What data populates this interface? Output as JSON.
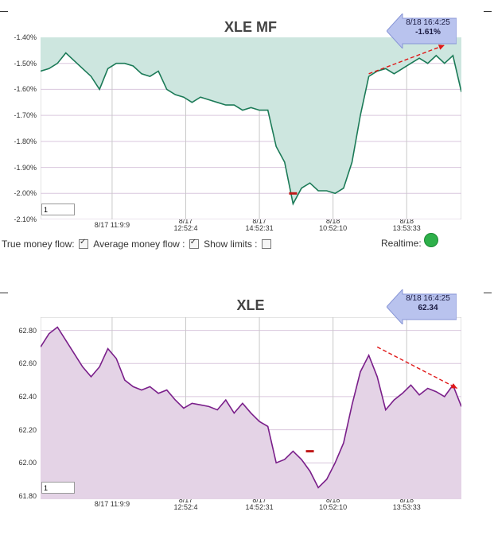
{
  "charts": [
    {
      "title": "XLE MF",
      "yticks": [
        "-1.40%",
        "-1.50%",
        "-1.60%",
        "-1.70%",
        "-1.80%",
        "-1.90%",
        "-2.00%",
        "-2.10%"
      ],
      "xticks": [
        [
          "8/17 11:9:9"
        ],
        [
          "8/17",
          "12:52:4"
        ],
        [
          "8/17",
          "14:52:31"
        ],
        [
          "8/18",
          "10:52:10"
        ],
        [
          "8/18",
          "13:53:33"
        ]
      ],
      "range_value": "1",
      "tooltip_time": "8/18 16:4:25",
      "tooltip_value": "-1.61%",
      "line_color": "#1b7a57",
      "fill_color": "#cde6df"
    },
    {
      "title": "XLE",
      "yticks": [
        "62.80",
        "62.60",
        "62.40",
        "62.20",
        "62.00",
        "61.80"
      ],
      "xticks": [
        [
          "8/17 11:9:9"
        ],
        [
          "8/17",
          "12:52:4"
        ],
        [
          "8/17",
          "14:52:31"
        ],
        [
          "8/18",
          "10:52:10"
        ],
        [
          "8/18",
          "13:53:33"
        ]
      ],
      "range_value": "1",
      "tooltip_time": "8/18 16:4:25",
      "tooltip_value": "62.34",
      "line_color": "#7a1f8a",
      "fill_color": "#e4d3e6"
    }
  ],
  "controls": {
    "true_money_flow_label": "True money flow:",
    "average_money_flow_label": "Average money flow :",
    "show_limits_label": "Show limits :",
    "average_money_flow_checked": true,
    "show_limits_checked": false,
    "realtime_label": "Realtime:",
    "realtime_color": "#2eb04a"
  },
  "chart_data": [
    {
      "type": "area",
      "title": "XLE MF",
      "ylim": [
        -2.1,
        -1.4
      ],
      "x": [
        0,
        0.02,
        0.04,
        0.06,
        0.08,
        0.1,
        0.12,
        0.14,
        0.16,
        0.18,
        0.2,
        0.22,
        0.24,
        0.26,
        0.28,
        0.3,
        0.32,
        0.34,
        0.36,
        0.38,
        0.4,
        0.42,
        0.44,
        0.46,
        0.48,
        0.5,
        0.52,
        0.54,
        0.56,
        0.58,
        0.6,
        0.62,
        0.64,
        0.66,
        0.68,
        0.7,
        0.72,
        0.74,
        0.76,
        0.78,
        0.8,
        0.82,
        0.84,
        0.86,
        0.88,
        0.9,
        0.92,
        0.94,
        0.96,
        0.98,
        1.0
      ],
      "values": [
        -1.53,
        -1.52,
        -1.5,
        -1.46,
        -1.49,
        -1.52,
        -1.55,
        -1.6,
        -1.52,
        -1.5,
        -1.5,
        -1.51,
        -1.54,
        -1.55,
        -1.53,
        -1.6,
        -1.62,
        -1.63,
        -1.65,
        -1.63,
        -1.64,
        -1.65,
        -1.66,
        -1.66,
        -1.68,
        -1.67,
        -1.68,
        -1.68,
        -1.82,
        -1.88,
        -2.04,
        -1.98,
        -1.96,
        -1.99,
        -1.99,
        -2.0,
        -1.98,
        -1.88,
        -1.7,
        -1.55,
        -1.53,
        -1.52,
        -1.54,
        -1.52,
        -1.5,
        -1.48,
        -1.5,
        -1.47,
        -1.5,
        -1.47,
        -1.61
      ],
      "trendline": [
        [
          0.78,
          -1.54
        ],
        [
          0.96,
          -1.43
        ]
      ],
      "marker": [
        0.6,
        -2.0
      ]
    },
    {
      "type": "area",
      "title": "XLE",
      "ylim": [
        61.78,
        62.88
      ],
      "x": [
        0,
        0.02,
        0.04,
        0.06,
        0.08,
        0.1,
        0.12,
        0.14,
        0.16,
        0.18,
        0.2,
        0.22,
        0.24,
        0.26,
        0.28,
        0.3,
        0.32,
        0.34,
        0.36,
        0.38,
        0.4,
        0.42,
        0.44,
        0.46,
        0.48,
        0.5,
        0.52,
        0.54,
        0.56,
        0.58,
        0.6,
        0.62,
        0.64,
        0.66,
        0.68,
        0.7,
        0.72,
        0.74,
        0.76,
        0.78,
        0.8,
        0.82,
        0.84,
        0.86,
        0.88,
        0.9,
        0.92,
        0.94,
        0.96,
        0.98,
        1.0
      ],
      "values": [
        62.7,
        62.78,
        62.82,
        62.74,
        62.66,
        62.58,
        62.52,
        62.58,
        62.69,
        62.63,
        62.5,
        62.46,
        62.44,
        62.46,
        62.42,
        62.44,
        62.38,
        62.33,
        62.36,
        62.35,
        62.34,
        62.32,
        62.38,
        62.3,
        62.36,
        62.3,
        62.25,
        62.22,
        62.0,
        62.02,
        62.07,
        62.02,
        61.95,
        61.85,
        61.9,
        62.0,
        62.12,
        62.35,
        62.55,
        62.65,
        62.52,
        62.32,
        62.38,
        62.42,
        62.47,
        62.41,
        62.45,
        62.43,
        62.4,
        62.47,
        62.34
      ],
      "trendline": [
        [
          0.8,
          62.7
        ],
        [
          0.99,
          62.45
        ]
      ],
      "marker": [
        0.64,
        62.07
      ]
    }
  ]
}
